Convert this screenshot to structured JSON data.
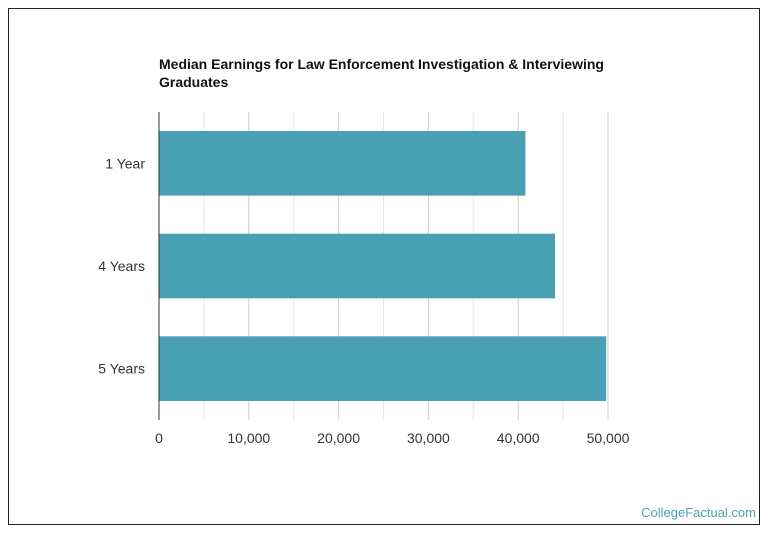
{
  "chart_data": {
    "type": "bar",
    "orientation": "horizontal",
    "title": "Median Earnings for Law Enforcement Investigation & Interviewing Graduates",
    "categories": [
      "1 Year",
      "4 Years",
      "5 Years"
    ],
    "values": [
      40800,
      44100,
      49800
    ],
    "xlim": [
      0,
      50000
    ],
    "xticks": [
      0,
      10000,
      20000,
      30000,
      40000,
      50000
    ],
    "xtick_labels": [
      "0",
      "10,000",
      "20,000",
      "30,000",
      "40,000",
      "50,000"
    ],
    "grid": true,
    "bar_color": "#4aa0b3",
    "xlabel": "",
    "ylabel": ""
  },
  "watermark": "CollegeFactual.com"
}
